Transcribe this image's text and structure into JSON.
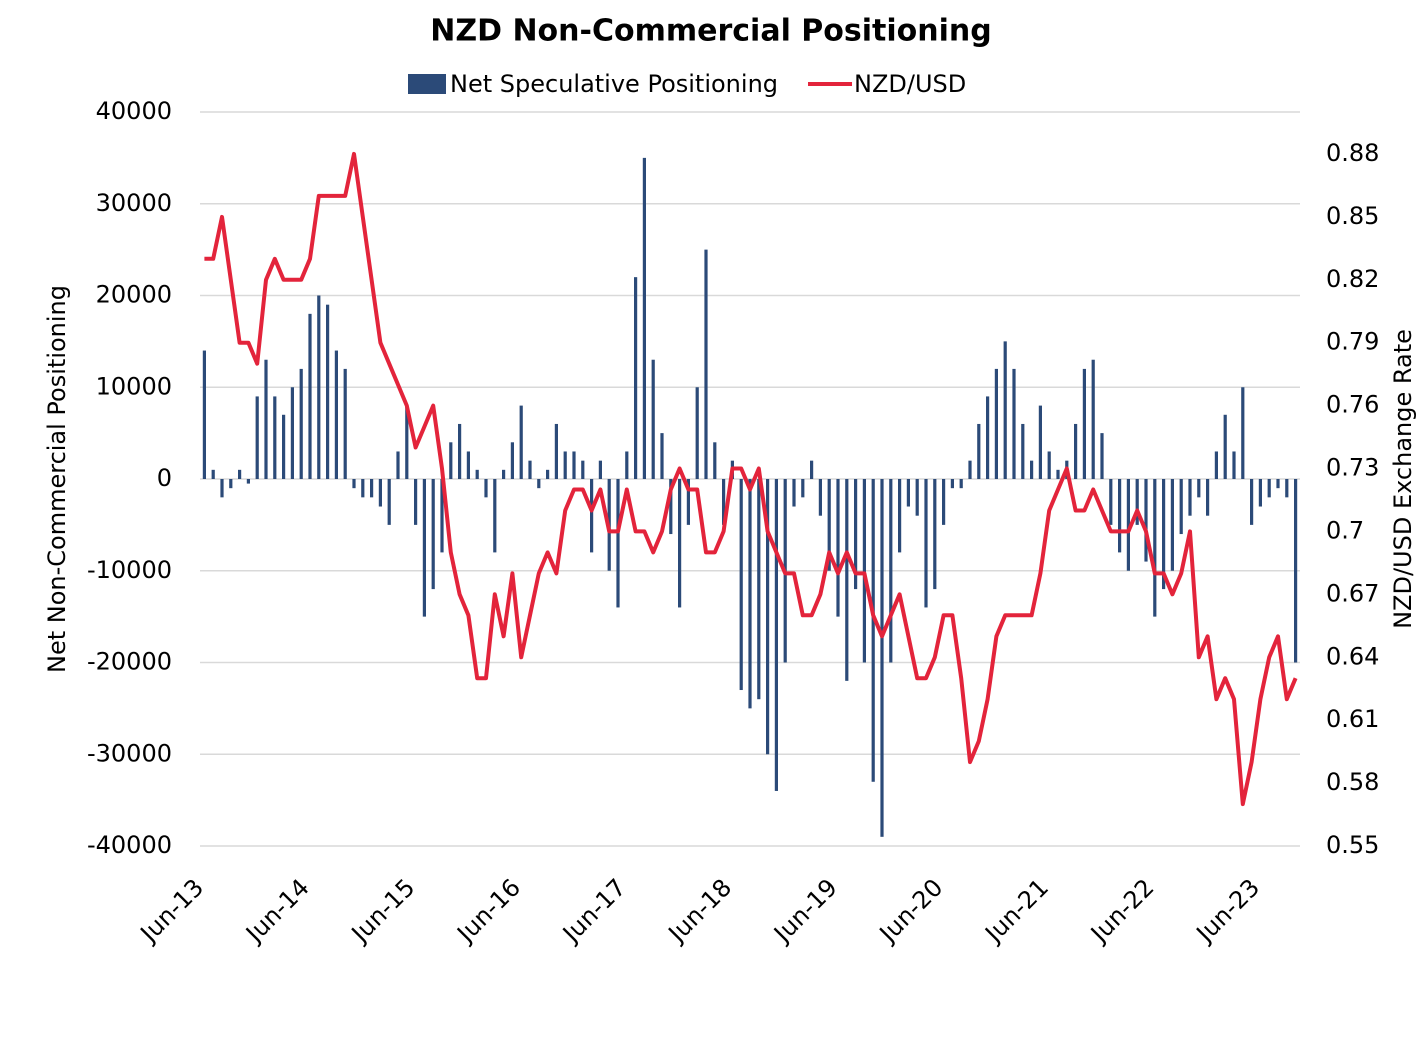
{
  "chart_data": {
    "type": "bar-line",
    "title": "NZD Non-Commercial Positioning",
    "y_label": "Net Non-Commercial Positioning",
    "y2_label": "NZD/USD Exchange Rate",
    "categories": [
      "Jun-13",
      null,
      null,
      null,
      null,
      null,
      null,
      null,
      null,
      null,
      null,
      null,
      "Jun-14",
      null,
      null,
      null,
      null,
      null,
      null,
      null,
      null,
      null,
      null,
      null,
      "Jun-15",
      null,
      null,
      null,
      null,
      null,
      null,
      null,
      null,
      null,
      null,
      null,
      "Jun-16",
      null,
      null,
      null,
      null,
      null,
      null,
      null,
      null,
      null,
      null,
      null,
      "Jun-17",
      null,
      null,
      null,
      null,
      null,
      null,
      null,
      null,
      null,
      null,
      null,
      "Jun-18",
      null,
      null,
      null,
      null,
      null,
      null,
      null,
      null,
      null,
      null,
      null,
      "Jun-19",
      null,
      null,
      null,
      null,
      null,
      null,
      null,
      null,
      null,
      null,
      null,
      "Jun-20",
      null,
      null,
      null,
      null,
      null,
      null,
      null,
      null,
      null,
      null,
      null,
      "Jun-21",
      null,
      null,
      null,
      null,
      null,
      null,
      null,
      null,
      null,
      null,
      null,
      "Jun-22",
      null,
      null,
      null,
      null,
      null,
      null,
      null,
      null,
      null,
      null,
      null,
      "Jun-23",
      null,
      null,
      null,
      null
    ],
    "ylim": [
      -40000,
      40000
    ],
    "yticks": [
      -40000,
      -30000,
      -20000,
      -10000,
      0,
      10000,
      20000,
      30000,
      40000
    ],
    "y2lim": [
      0.55,
      0.9
    ],
    "y2ticks": [
      0.55,
      0.58,
      0.61,
      0.64,
      0.67,
      0.7,
      0.73,
      0.76,
      0.79,
      0.82,
      0.85,
      0.88
    ],
    "grid": true,
    "legend": "top",
    "series": [
      {
        "name": "Net Speculative Positioning",
        "type": "bar",
        "color": "#2b4a78",
        "values": [
          14000,
          1000,
          -2000,
          -1000,
          1000,
          -500,
          9000,
          13000,
          9000,
          7000,
          10000,
          12000,
          18000,
          20000,
          19000,
          14000,
          12000,
          -1000,
          -2000,
          -2000,
          -3000,
          -5000,
          3000,
          8000,
          -5000,
          -15000,
          -12000,
          -8000,
          4000,
          6000,
          3000,
          1000,
          -2000,
          -8000,
          1000,
          4000,
          8000,
          2000,
          -1000,
          1000,
          6000,
          3000,
          3000,
          2000,
          -8000,
          2000,
          -10000,
          -14000,
          3000,
          22000,
          35000,
          13000,
          5000,
          -6000,
          -14000,
          -5000,
          10000,
          25000,
          4000,
          -5000,
          2000,
          -23000,
          -25000,
          -24000,
          -30000,
          -34000,
          -20000,
          -3000,
          -2000,
          2000,
          -4000,
          -10000,
          -15000,
          -22000,
          -12000,
          -20000,
          -33000,
          -39000,
          -20000,
          -8000,
          -3000,
          -4000,
          -14000,
          -12000,
          -5000,
          -1000,
          -1000,
          2000,
          6000,
          9000,
          12000,
          15000,
          12000,
          6000,
          2000,
          8000,
          3000,
          1000,
          2000,
          6000,
          12000,
          13000,
          5000,
          -5000,
          -8000,
          -10000,
          -5000,
          -9000,
          -15000,
          -12000,
          -10000,
          -6000,
          -4000,
          -2000,
          -4000,
          3000,
          7000,
          3000,
          10000,
          -5000,
          -3000,
          -2000,
          -1000,
          -2000,
          -20000
        ]
      },
      {
        "name": "NZD/USD",
        "type": "line",
        "axis": "y2",
        "color": "#e3243b",
        "values": [
          0.83,
          0.83,
          0.85,
          0.82,
          0.79,
          0.79,
          0.78,
          0.82,
          0.83,
          0.82,
          0.82,
          0.82,
          0.83,
          0.86,
          0.86,
          0.86,
          0.86,
          0.88,
          0.85,
          0.82,
          0.79,
          0.78,
          0.77,
          0.76,
          0.74,
          0.75,
          0.76,
          0.73,
          0.69,
          0.67,
          0.66,
          0.63,
          0.63,
          0.67,
          0.65,
          0.68,
          0.64,
          0.66,
          0.68,
          0.69,
          0.68,
          0.71,
          0.72,
          0.72,
          0.71,
          0.72,
          0.7,
          0.7,
          0.72,
          0.7,
          0.7,
          0.69,
          0.7,
          0.72,
          0.73,
          0.72,
          0.72,
          0.69,
          0.69,
          0.7,
          0.73,
          0.73,
          0.72,
          0.73,
          0.7,
          0.69,
          0.68,
          0.68,
          0.66,
          0.66,
          0.67,
          0.69,
          0.68,
          0.69,
          0.68,
          0.68,
          0.66,
          0.65,
          0.66,
          0.67,
          0.65,
          0.63,
          0.63,
          0.64,
          0.66,
          0.66,
          0.63,
          0.59,
          0.6,
          0.62,
          0.65,
          0.66,
          0.66,
          0.66,
          0.66,
          0.68,
          0.71,
          0.72,
          0.73,
          0.71,
          0.71,
          0.72,
          0.71,
          0.7,
          0.7,
          0.7,
          0.71,
          0.7,
          0.68,
          0.68,
          0.67,
          0.68,
          0.7,
          0.64,
          0.65,
          0.62,
          0.63,
          0.62,
          0.57,
          0.59,
          0.62,
          0.64,
          0.65,
          0.62,
          0.63
        ]
      }
    ]
  }
}
